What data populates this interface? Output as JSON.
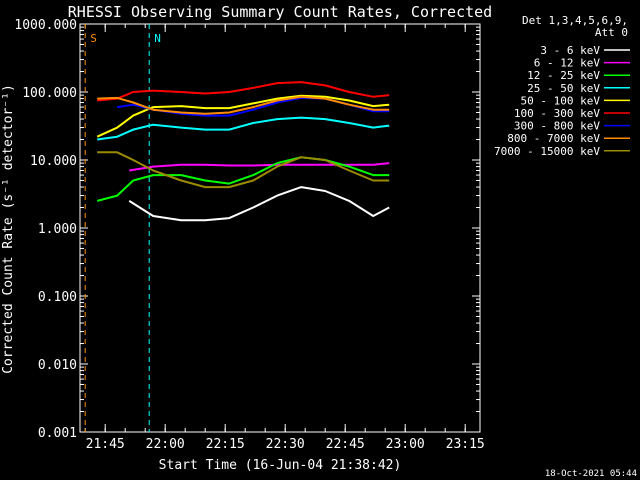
{
  "chart_data": {
    "type": "line",
    "title": "RHESSI Observing Summary Count Rates, Corrected",
    "xlabel": "Start Time (16-Jun-04 21:38:42)",
    "ylabel": "Corrected Count Rate (s⁻¹ detector⁻¹)",
    "yscale": "log",
    "ylim": [
      0.001,
      1000
    ],
    "xlim_minutes_after_start": [
      0,
      100
    ],
    "x_ticks": [
      "21:45",
      "22:00",
      "22:15",
      "22:30",
      "22:45",
      "23:00",
      "23:15"
    ],
    "y_ticks": [
      "0.001",
      "0.010",
      "0.100",
      "1.000",
      "10.000",
      "100.000",
      "1000.000"
    ],
    "legend_header": [
      "Det 1,3,4,5,6,9,",
      "Att 0"
    ],
    "legend_position": "right",
    "grid": false,
    "markers": [
      {
        "label": "S",
        "time": "21:40",
        "color": "#ff8c00"
      },
      {
        "label": "N",
        "time": "21:56",
        "color": "#00ffff"
      }
    ],
    "series": [
      {
        "name": "3 - 6 keV",
        "color": "#ffffff",
        "time": [
          "21:51",
          "21:57",
          "22:04",
          "22:10",
          "22:16",
          "22:22",
          "22:28",
          "22:34",
          "22:40",
          "22:46",
          "22:52",
          "22:56"
        ],
        "values": [
          2.5,
          1.5,
          1.3,
          1.3,
          1.4,
          2.0,
          3.0,
          4.0,
          3.5,
          2.5,
          1.5,
          2.0
        ]
      },
      {
        "name": "6 - 12 keV",
        "color": "#ff00ff",
        "time": [
          "21:51",
          "21:57",
          "22:04",
          "22:10",
          "22:16",
          "22:22",
          "22:28",
          "22:34",
          "22:40",
          "22:46",
          "22:52",
          "22:56"
        ],
        "values": [
          7.0,
          8.0,
          8.5,
          8.5,
          8.3,
          8.3,
          8.5,
          8.5,
          8.5,
          8.5,
          8.5,
          9.0
        ]
      },
      {
        "name": "12 - 25 keV",
        "color": "#00ff00",
        "time": [
          "21:43",
          "21:48",
          "21:52",
          "21:57",
          "22:04",
          "22:10",
          "22:16",
          "22:22",
          "22:28",
          "22:34",
          "22:40",
          "22:46",
          "22:52",
          "22:56"
        ],
        "values": [
          2.5,
          3.0,
          5.0,
          6.0,
          6.0,
          5.0,
          4.5,
          6.0,
          9.0,
          11.0,
          10.0,
          8.0,
          6.0,
          6.0
        ]
      },
      {
        "name": "25 - 50 keV",
        "color": "#00ffff",
        "time": [
          "21:43",
          "21:48",
          "21:52",
          "21:57",
          "22:04",
          "22:10",
          "22:16",
          "22:22",
          "22:28",
          "22:34",
          "22:40",
          "22:46",
          "22:52",
          "22:56"
        ],
        "values": [
          20,
          22,
          28,
          33,
          30,
          28,
          28,
          35,
          40,
          42,
          40,
          35,
          30,
          32
        ]
      },
      {
        "name": "50 - 100 keV",
        "color": "#ffff00",
        "time": [
          "21:43",
          "21:48",
          "21:52",
          "21:57",
          "22:04",
          "22:10",
          "22:16",
          "22:22",
          "22:28",
          "22:34",
          "22:40",
          "22:46",
          "22:52",
          "22:56"
        ],
        "values": [
          22,
          30,
          45,
          60,
          62,
          58,
          58,
          68,
          80,
          88,
          85,
          75,
          62,
          65
        ]
      },
      {
        "name": "100 - 300 keV",
        "color": "#ff0000",
        "time": [
          "21:43",
          "21:48",
          "21:52",
          "21:57",
          "22:04",
          "22:10",
          "22:16",
          "22:22",
          "22:28",
          "22:34",
          "22:40",
          "22:46",
          "22:52",
          "22:56"
        ],
        "values": [
          75,
          80,
          100,
          105,
          100,
          95,
          100,
          115,
          135,
          140,
          125,
          100,
          85,
          90
        ]
      },
      {
        "name": "300 - 800 keV",
        "color": "#0000ff",
        "time": [
          "21:48",
          "21:52",
          "21:57",
          "22:04",
          "22:10",
          "22:16",
          "22:22",
          "22:28",
          "22:34",
          "22:40",
          "22:46",
          "22:52",
          "22:56"
        ],
        "values": [
          60,
          65,
          55,
          48,
          45,
          45,
          55,
          70,
          82,
          80,
          65,
          52,
          52
        ]
      },
      {
        "name": "800 - 7000 keV",
        "color": "#ff8c00",
        "time": [
          "21:43",
          "21:48",
          "21:52",
          "21:57",
          "22:04",
          "22:10",
          "22:16",
          "22:22",
          "22:28",
          "22:34",
          "22:40",
          "22:46",
          "22:52",
          "22:56"
        ],
        "values": [
          80,
          82,
          70,
          55,
          50,
          48,
          50,
          60,
          75,
          85,
          80,
          65,
          55,
          55
        ]
      },
      {
        "name": "7000 - 15000 keV",
        "color": "#9b8b00",
        "time": [
          "21:43",
          "21:48",
          "21:52",
          "21:57",
          "22:04",
          "22:10",
          "22:16",
          "22:22",
          "22:28",
          "22:34",
          "22:40",
          "22:46",
          "22:52",
          "22:56"
        ],
        "values": [
          13,
          13,
          10,
          7,
          5,
          4,
          4,
          5,
          8,
          11,
          10,
          7,
          5,
          5
        ]
      }
    ]
  },
  "footer": {
    "timestamp": "18-Oct-2021 05:44"
  }
}
